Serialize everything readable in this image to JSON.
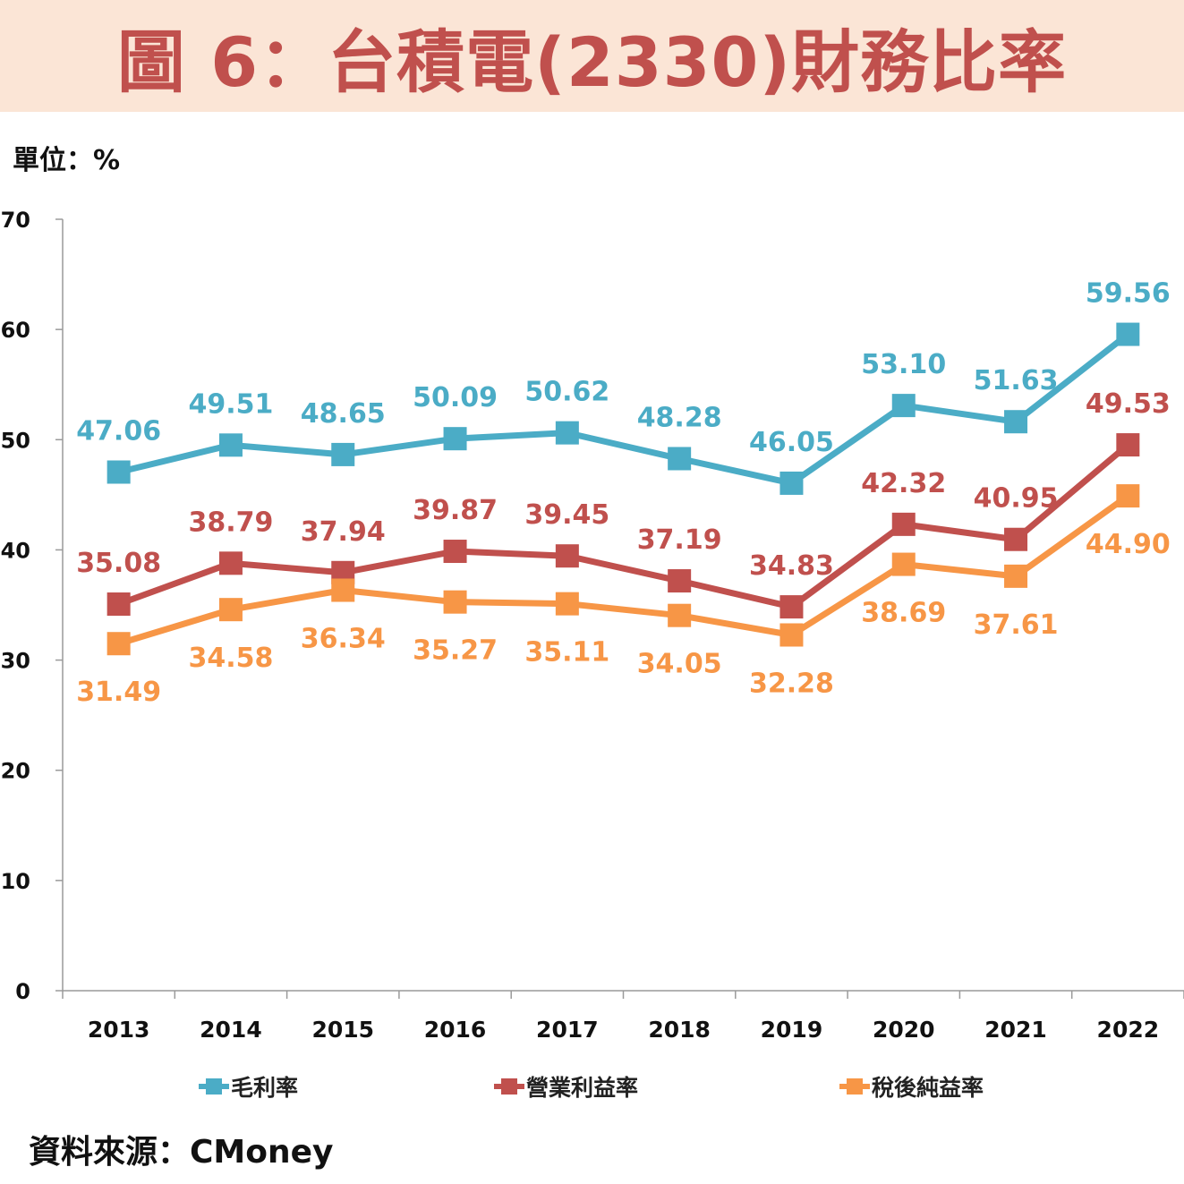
{
  "title": "圖 6：台積電(2330)財務比率",
  "unit_label": "單位：%",
  "source": "資料來源：CMoney",
  "chart_data": {
    "type": "line",
    "x": [
      "2013",
      "2014",
      "2015",
      "2016",
      "2017",
      "2018",
      "2019",
      "2020",
      "2021",
      "2022"
    ],
    "ylim": [
      0,
      70
    ],
    "yticks": [
      0,
      10,
      20,
      30,
      40,
      50,
      60,
      70
    ],
    "grid": false,
    "legend_position": "bottom",
    "series": [
      {
        "name": "毛利率",
        "color": "#4bacc6",
        "label_pos": "above",
        "values": [
          47.06,
          49.51,
          48.65,
          50.09,
          50.62,
          48.28,
          46.05,
          53.1,
          51.63,
          59.56
        ],
        "labels": [
          "47.06",
          "49.51",
          "48.65",
          "50.09",
          "50.62",
          "48.28",
          "46.05",
          "53.10",
          "51.63",
          "59.56"
        ]
      },
      {
        "name": "營業利益率",
        "color": "#c0504d",
        "label_pos": "above",
        "values": [
          35.08,
          38.79,
          37.94,
          39.87,
          39.45,
          37.19,
          34.83,
          42.32,
          40.95,
          49.53
        ],
        "labels": [
          "35.08",
          "38.79",
          "37.94",
          "39.87",
          "39.45",
          "37.19",
          "34.83",
          "42.32",
          "40.95",
          "49.53"
        ]
      },
      {
        "name": "稅後純益率",
        "color": "#f79646",
        "label_pos": "below",
        "values": [
          31.49,
          34.58,
          36.34,
          35.27,
          35.11,
          34.05,
          32.28,
          38.69,
          37.61,
          44.9
        ],
        "labels": [
          "31.49",
          "34.58",
          "36.34",
          "35.27",
          "35.11",
          "34.05",
          "32.28",
          "38.69",
          "37.61",
          "44.90"
        ]
      }
    ]
  }
}
